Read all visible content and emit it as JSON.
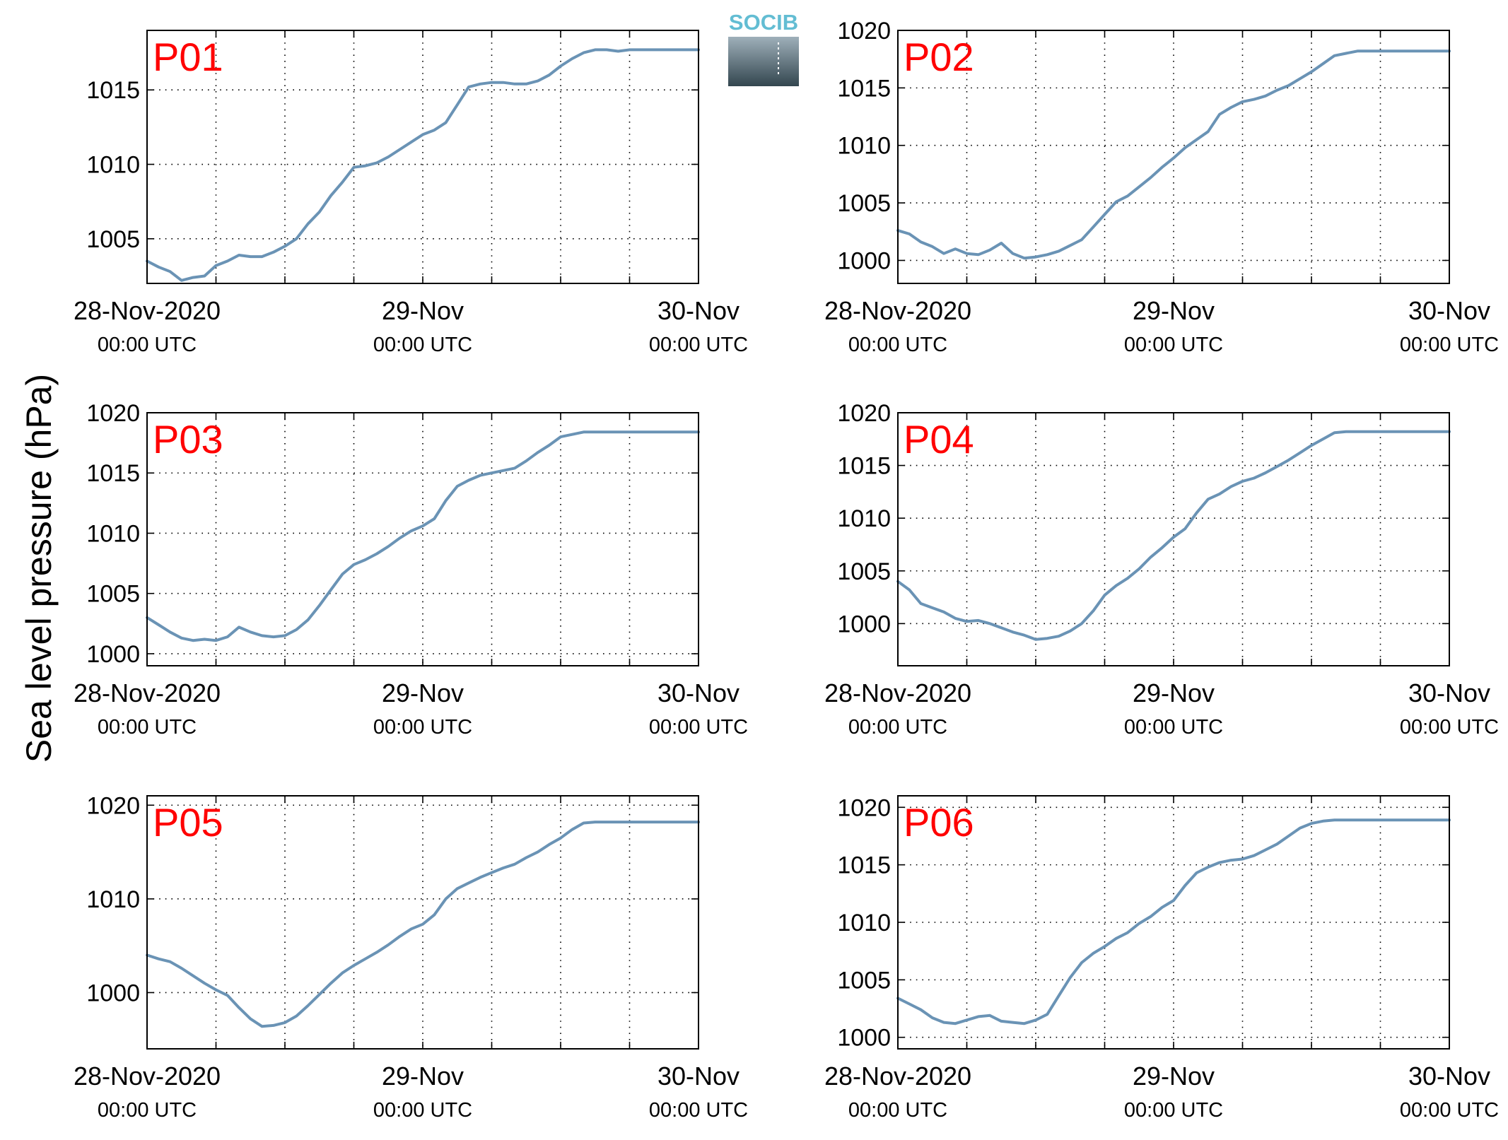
{
  "figure": {
    "ylabel": "Sea level pressure (hPa)",
    "logo_text": "SOCIB",
    "line_color": "#6a93b5",
    "label_color": "#ff0000"
  },
  "chart_data": [
    {
      "type": "line",
      "panel_label": "P01",
      "x_unit": "hours since 28-Nov-2020 00:00 UTC",
      "xlim": [
        0,
        48
      ],
      "ylim": [
        1002,
        1019
      ],
      "yticks": [
        1005,
        1010,
        1015
      ],
      "xticks": [
        {
          "x": 0,
          "date": "28-Nov-2020",
          "time": "00:00 UTC"
        },
        {
          "x": 24,
          "date": "29-Nov",
          "time": "00:00 UTC"
        },
        {
          "x": 48,
          "date": "30-Nov",
          "time": "00:00 UTC"
        }
      ],
      "grid_x": [
        6,
        12,
        18,
        24,
        30,
        36,
        42
      ],
      "grid": true,
      "x": [
        0,
        1,
        2,
        3,
        4,
        5,
        6,
        7,
        8,
        9,
        10,
        11,
        12,
        13,
        14,
        15,
        16,
        17,
        18,
        19,
        20,
        21,
        22,
        23,
        24,
        25,
        26,
        27,
        28,
        29,
        30,
        31,
        32,
        33,
        34,
        35,
        36,
        37,
        38,
        39,
        40,
        41,
        42,
        43,
        44,
        45,
        46,
        47,
        48
      ],
      "y": [
        1003.5,
        1003.1,
        1002.8,
        1002.2,
        1002.4,
        1002.5,
        1003.2,
        1003.5,
        1003.9,
        1003.8,
        1003.8,
        1004.1,
        1004.5,
        1005.0,
        1006.0,
        1006.8,
        1007.9,
        1008.8,
        1009.8,
        1009.9,
        1010.1,
        1010.5,
        1011.0,
        1011.5,
        1012.0,
        1012.3,
        1012.8,
        1014.0,
        1015.2,
        1015.4,
        1015.5,
        1015.5,
        1015.4,
        1015.4,
        1015.6,
        1016.0,
        1016.6,
        1017.1,
        1017.5,
        1017.7,
        1017.7,
        1017.6,
        1017.7,
        1017.7,
        1017.7,
        1017.7,
        1017.7,
        1017.7,
        1017.7
      ]
    },
    {
      "type": "line",
      "panel_label": "P02",
      "x_unit": "hours since 28-Nov-2020 00:00 UTC",
      "xlim": [
        0,
        48
      ],
      "ylim": [
        998,
        1020
      ],
      "yticks": [
        1000,
        1005,
        1010,
        1015,
        1020
      ],
      "xticks": [
        {
          "x": 0,
          "date": "28-Nov-2020",
          "time": "00:00 UTC"
        },
        {
          "x": 24,
          "date": "29-Nov",
          "time": "00:00 UTC"
        },
        {
          "x": 48,
          "date": "30-Nov",
          "time": "00:00 UTC"
        }
      ],
      "grid_x": [
        6,
        12,
        18,
        24,
        30,
        36,
        42
      ],
      "grid": true,
      "x": [
        0,
        1,
        2,
        3,
        4,
        5,
        6,
        7,
        8,
        9,
        10,
        11,
        12,
        13,
        14,
        15,
        16,
        17,
        18,
        19,
        20,
        21,
        22,
        23,
        24,
        25,
        26,
        27,
        28,
        29,
        30,
        31,
        32,
        33,
        34,
        35,
        36,
        37,
        38,
        39,
        40,
        41,
        42,
        43,
        44,
        45,
        46,
        47,
        48
      ],
      "y": [
        1002.6,
        1002.3,
        1001.6,
        1001.2,
        1000.6,
        1001.0,
        1000.6,
        1000.5,
        1000.9,
        1001.5,
        1000.6,
        1000.2,
        1000.3,
        1000.5,
        1000.8,
        1001.3,
        1001.8,
        1002.9,
        1004.0,
        1005.1,
        1005.6,
        1006.4,
        1007.2,
        1008.1,
        1008.9,
        1009.8,
        1010.5,
        1011.2,
        1012.7,
        1013.3,
        1013.8,
        1014.0,
        1014.3,
        1014.8,
        1015.2,
        1015.8,
        1016.4,
        1017.1,
        1017.8,
        1018.0,
        1018.2,
        1018.2,
        1018.2,
        1018.2,
        1018.2,
        1018.2,
        1018.2,
        1018.2,
        1018.2
      ]
    },
    {
      "type": "line",
      "panel_label": "P03",
      "x_unit": "hours since 28-Nov-2020 00:00 UTC",
      "xlim": [
        0,
        48
      ],
      "ylim": [
        999,
        1020
      ],
      "yticks": [
        1000,
        1005,
        1010,
        1015,
        1020
      ],
      "xticks": [
        {
          "x": 0,
          "date": "28-Nov-2020",
          "time": "00:00 UTC"
        },
        {
          "x": 24,
          "date": "29-Nov",
          "time": "00:00 UTC"
        },
        {
          "x": 48,
          "date": "30-Nov",
          "time": "00:00 UTC"
        }
      ],
      "grid_x": [
        6,
        12,
        18,
        24,
        30,
        36,
        42
      ],
      "grid": true,
      "x": [
        0,
        1,
        2,
        3,
        4,
        5,
        6,
        7,
        8,
        9,
        10,
        11,
        12,
        13,
        14,
        15,
        16,
        17,
        18,
        19,
        20,
        21,
        22,
        23,
        24,
        25,
        26,
        27,
        28,
        29,
        30,
        31,
        32,
        33,
        34,
        35,
        36,
        37,
        38,
        39,
        40,
        41,
        42,
        43,
        44,
        45,
        46,
        47,
        48
      ],
      "y": [
        1003.0,
        1002.4,
        1001.8,
        1001.3,
        1001.1,
        1001.2,
        1001.1,
        1001.4,
        1002.2,
        1001.8,
        1001.5,
        1001.4,
        1001.5,
        1002.0,
        1002.8,
        1004.0,
        1005.3,
        1006.6,
        1007.4,
        1007.8,
        1008.3,
        1008.9,
        1009.6,
        1010.2,
        1010.6,
        1011.2,
        1012.7,
        1013.9,
        1014.4,
        1014.8,
        1015.0,
        1015.2,
        1015.4,
        1016.0,
        1016.7,
        1017.3,
        1018.0,
        1018.2,
        1018.4,
        1018.4,
        1018.4,
        1018.4,
        1018.4,
        1018.4,
        1018.4,
        1018.4,
        1018.4,
        1018.4,
        1018.4
      ]
    },
    {
      "type": "line",
      "panel_label": "P04",
      "x_unit": "hours since 28-Nov-2020 00:00 UTC",
      "xlim": [
        0,
        48
      ],
      "ylim": [
        996,
        1020
      ],
      "yticks": [
        1000,
        1005,
        1010,
        1015,
        1020
      ],
      "xticks": [
        {
          "x": 0,
          "date": "28-Nov-2020",
          "time": "00:00 UTC"
        },
        {
          "x": 24,
          "date": "29-Nov",
          "time": "00:00 UTC"
        },
        {
          "x": 48,
          "date": "30-Nov",
          "time": "00:00 UTC"
        }
      ],
      "grid_x": [
        6,
        12,
        18,
        24,
        30,
        36,
        42
      ],
      "grid": true,
      "x": [
        0,
        1,
        2,
        3,
        4,
        5,
        6,
        7,
        8,
        9,
        10,
        11,
        12,
        13,
        14,
        15,
        16,
        17,
        18,
        19,
        20,
        21,
        22,
        23,
        24,
        25,
        26,
        27,
        28,
        29,
        30,
        31,
        32,
        33,
        34,
        35,
        36,
        37,
        38,
        39,
        40,
        41,
        42,
        43,
        44,
        45,
        46,
        47,
        48
      ],
      "y": [
        1004.0,
        1003.2,
        1001.9,
        1001.5,
        1001.1,
        1000.5,
        1000.2,
        1000.3,
        1000.0,
        999.6,
        999.2,
        998.9,
        998.5,
        998.6,
        998.8,
        999.3,
        1000.0,
        1001.2,
        1002.7,
        1003.6,
        1004.3,
        1005.2,
        1006.3,
        1007.2,
        1008.2,
        1009.0,
        1010.5,
        1011.8,
        1012.3,
        1013.0,
        1013.5,
        1013.8,
        1014.3,
        1014.9,
        1015.5,
        1016.2,
        1016.9,
        1017.5,
        1018.1,
        1018.2,
        1018.2,
        1018.2,
        1018.2,
        1018.2,
        1018.2,
        1018.2,
        1018.2,
        1018.2,
        1018.2
      ]
    },
    {
      "type": "line",
      "panel_label": "P05",
      "x_unit": "hours since 28-Nov-2020 00:00 UTC",
      "xlim": [
        0,
        48
      ],
      "ylim": [
        994,
        1021
      ],
      "yticks": [
        1000,
        1010,
        1020
      ],
      "xticks": [
        {
          "x": 0,
          "date": "28-Nov-2020",
          "time": "00:00 UTC"
        },
        {
          "x": 24,
          "date": "29-Nov",
          "time": "00:00 UTC"
        },
        {
          "x": 48,
          "date": "30-Nov",
          "time": "00:00 UTC"
        }
      ],
      "grid_x": [
        6,
        12,
        18,
        24,
        30,
        36,
        42
      ],
      "grid": true,
      "x": [
        0,
        1,
        2,
        3,
        4,
        5,
        6,
        7,
        8,
        9,
        10,
        11,
        12,
        13,
        14,
        15,
        16,
        17,
        18,
        19,
        20,
        21,
        22,
        23,
        24,
        25,
        26,
        27,
        28,
        29,
        30,
        31,
        32,
        33,
        34,
        35,
        36,
        37,
        38,
        39,
        40,
        41,
        42,
        43,
        44,
        45,
        46,
        47,
        48
      ],
      "y": [
        1004.0,
        1003.6,
        1003.3,
        1002.6,
        1001.8,
        1001.0,
        1000.3,
        999.7,
        998.4,
        997.2,
        996.4,
        996.5,
        996.8,
        997.5,
        998.6,
        999.8,
        1001.0,
        1002.1,
        1002.9,
        1003.6,
        1004.3,
        1005.1,
        1006.0,
        1006.8,
        1007.3,
        1008.3,
        1010.0,
        1011.1,
        1011.7,
        1012.3,
        1012.8,
        1013.3,
        1013.7,
        1014.4,
        1015.0,
        1015.8,
        1016.5,
        1017.4,
        1018.1,
        1018.2,
        1018.2,
        1018.2,
        1018.2,
        1018.2,
        1018.2,
        1018.2,
        1018.2,
        1018.2,
        1018.2
      ]
    },
    {
      "type": "line",
      "panel_label": "P06",
      "x_unit": "hours since 28-Nov-2020 00:00 UTC",
      "xlim": [
        0,
        48
      ],
      "ylim": [
        999,
        1021
      ],
      "yticks": [
        1000,
        1005,
        1010,
        1015,
        1020
      ],
      "xticks": [
        {
          "x": 0,
          "date": "28-Nov-2020",
          "time": "00:00 UTC"
        },
        {
          "x": 24,
          "date": "29-Nov",
          "time": "00:00 UTC"
        },
        {
          "x": 48,
          "date": "30-Nov",
          "time": "00:00 UTC"
        }
      ],
      "grid_x": [
        6,
        12,
        18,
        24,
        30,
        36,
        42
      ],
      "grid": true,
      "x": [
        0,
        1,
        2,
        3,
        4,
        5,
        6,
        7,
        8,
        9,
        10,
        11,
        12,
        13,
        14,
        15,
        16,
        17,
        18,
        19,
        20,
        21,
        22,
        23,
        24,
        25,
        26,
        27,
        28,
        29,
        30,
        31,
        32,
        33,
        34,
        35,
        36,
        37,
        38,
        39,
        40,
        41,
        42,
        43,
        44,
        45,
        46,
        47,
        48
      ],
      "y": [
        1003.4,
        1002.9,
        1002.4,
        1001.7,
        1001.3,
        1001.2,
        1001.5,
        1001.8,
        1001.9,
        1001.4,
        1001.3,
        1001.2,
        1001.5,
        1002.0,
        1003.6,
        1005.2,
        1006.5,
        1007.3,
        1007.9,
        1008.6,
        1009.1,
        1009.9,
        1010.5,
        1011.3,
        1011.9,
        1013.2,
        1014.3,
        1014.8,
        1015.2,
        1015.4,
        1015.5,
        1015.8,
        1016.3,
        1016.8,
        1017.5,
        1018.2,
        1018.6,
        1018.8,
        1018.9,
        1018.9,
        1018.9,
        1018.9,
        1018.9,
        1018.9,
        1018.9,
        1018.9,
        1018.9,
        1018.9,
        1018.9
      ]
    }
  ]
}
